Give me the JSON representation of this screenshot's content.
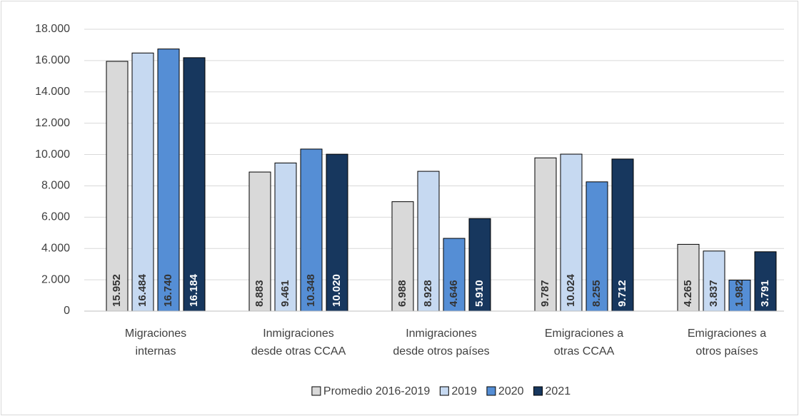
{
  "chart_data": {
    "type": "bar",
    "categories": [
      [
        "Migraciones",
        "internas"
      ],
      [
        "Inmigraciones",
        "desde otras CCAA"
      ],
      [
        "Inmigraciones",
        "desde otros países"
      ],
      [
        "Emigraciones a",
        "otras CCAA"
      ],
      [
        "Emigraciones a",
        "otros países"
      ]
    ],
    "series": [
      {
        "name": "Promedio 2016-2019",
        "color": "#d9d9d9",
        "label_color": "#333333",
        "values": [
          15952,
          8883,
          6988,
          9787,
          4265
        ],
        "value_labels": [
          "15.952",
          "8.883",
          "6.988",
          "9.787",
          "4.265"
        ]
      },
      {
        "name": "2019",
        "color": "#c6d9f1",
        "label_color": "#333333",
        "values": [
          16484,
          9461,
          8928,
          10024,
          3837
        ],
        "value_labels": [
          "16.484",
          "9.461",
          "8.928",
          "10.024",
          "3.837"
        ]
      },
      {
        "name": "2020",
        "color": "#558ed5",
        "label_color": "#333333",
        "values": [
          16740,
          10348,
          4646,
          8255,
          1982
        ],
        "value_labels": [
          "16.740",
          "10.348",
          "4.646",
          "8.255",
          "1.982"
        ]
      },
      {
        "name": "2021",
        "color": "#17375e",
        "label_color": "#ffffff",
        "values": [
          16184,
          10020,
          5910,
          9712,
          3791
        ],
        "value_labels": [
          "16.184",
          "10.020",
          "5.910",
          "9.712",
          "3.791"
        ]
      }
    ],
    "ylim": [
      0,
      18000
    ],
    "yticks": [
      0,
      {
        "value": 2000,
        "label": "2.000"
      },
      {
        "value": 4000,
        "label": "4.000"
      },
      {
        "value": 6000,
        "label": "6.000"
      },
      {
        "value": 8000,
        "label": "8.000"
      },
      {
        "value": 10000,
        "label": "10.000"
      },
      {
        "value": 12000,
        "label": "12.000"
      },
      {
        "value": 14000,
        "label": "14.000"
      },
      {
        "value": 16000,
        "label": "16.000"
      },
      {
        "value": 18000,
        "label": "18.000"
      }
    ],
    "grid": true,
    "legend": "bottom"
  }
}
